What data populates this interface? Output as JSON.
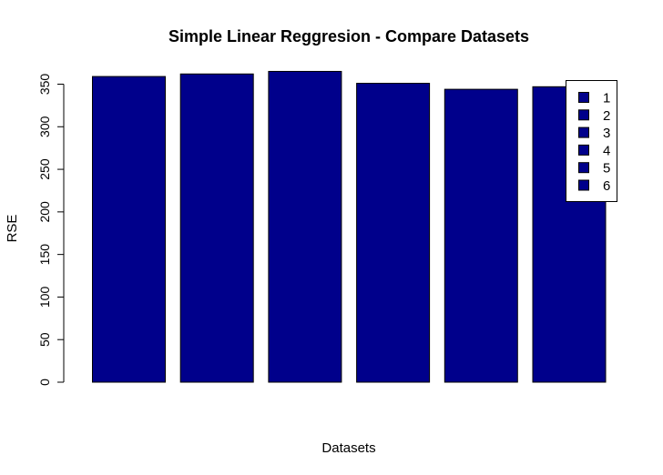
{
  "chart_data": {
    "type": "bar",
    "title": "Simple Linear Reggresion - Compare Datasets",
    "xlabel": "Datasets",
    "ylabel": "RSE",
    "categories": [
      "1",
      "2",
      "3",
      "4",
      "5",
      "6"
    ],
    "values": [
      359,
      362,
      365,
      351,
      344,
      347
    ],
    "ylim": [
      0,
      365
    ],
    "yticks": [
      "0",
      "50",
      "100",
      "150",
      "200",
      "250",
      "300",
      "350"
    ],
    "ytick_values": [
      0,
      50,
      100,
      150,
      200,
      250,
      300,
      350
    ],
    "grid": false,
    "legend": {
      "placement": "top-right",
      "entries": [
        "1",
        "2",
        "3",
        "4",
        "5",
        "6"
      ]
    },
    "colors": {
      "bar_fill": "#00008B",
      "bar_stroke": "#000000",
      "axis": "#000000"
    }
  }
}
